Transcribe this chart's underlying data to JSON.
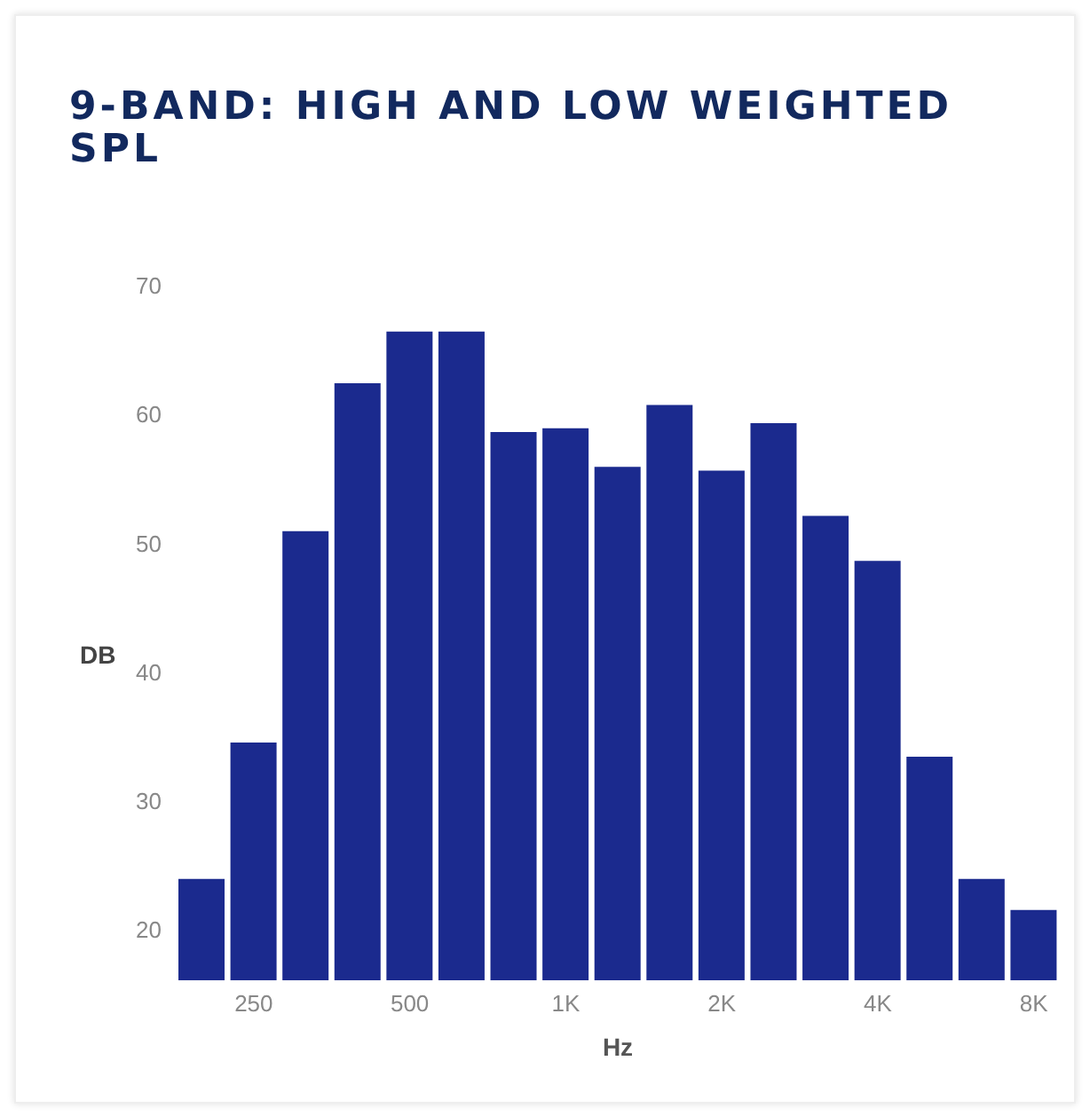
{
  "chart_data": {
    "type": "bar",
    "title": "9-BAND: HIGH AND LOW WEIGHTED SPL",
    "xlabel": "Hz",
    "ylabel": "DB",
    "categories": [
      null,
      "250",
      null,
      null,
      "500",
      null,
      null,
      "1K",
      null,
      null,
      "2K",
      null,
      null,
      "4K",
      null,
      null,
      "8K"
    ],
    "values": [
      24,
      34.6,
      51,
      62.5,
      66.5,
      66.5,
      58.7,
      59,
      56,
      60.8,
      55.7,
      59.4,
      52.2,
      48.7,
      33.5,
      24,
      21.6
    ],
    "color": "#1b2a8e",
    "ylim": [
      16,
      70
    ],
    "yticks": [
      20,
      30,
      40,
      50,
      60,
      70
    ],
    "grid": false,
    "legend": false
  }
}
